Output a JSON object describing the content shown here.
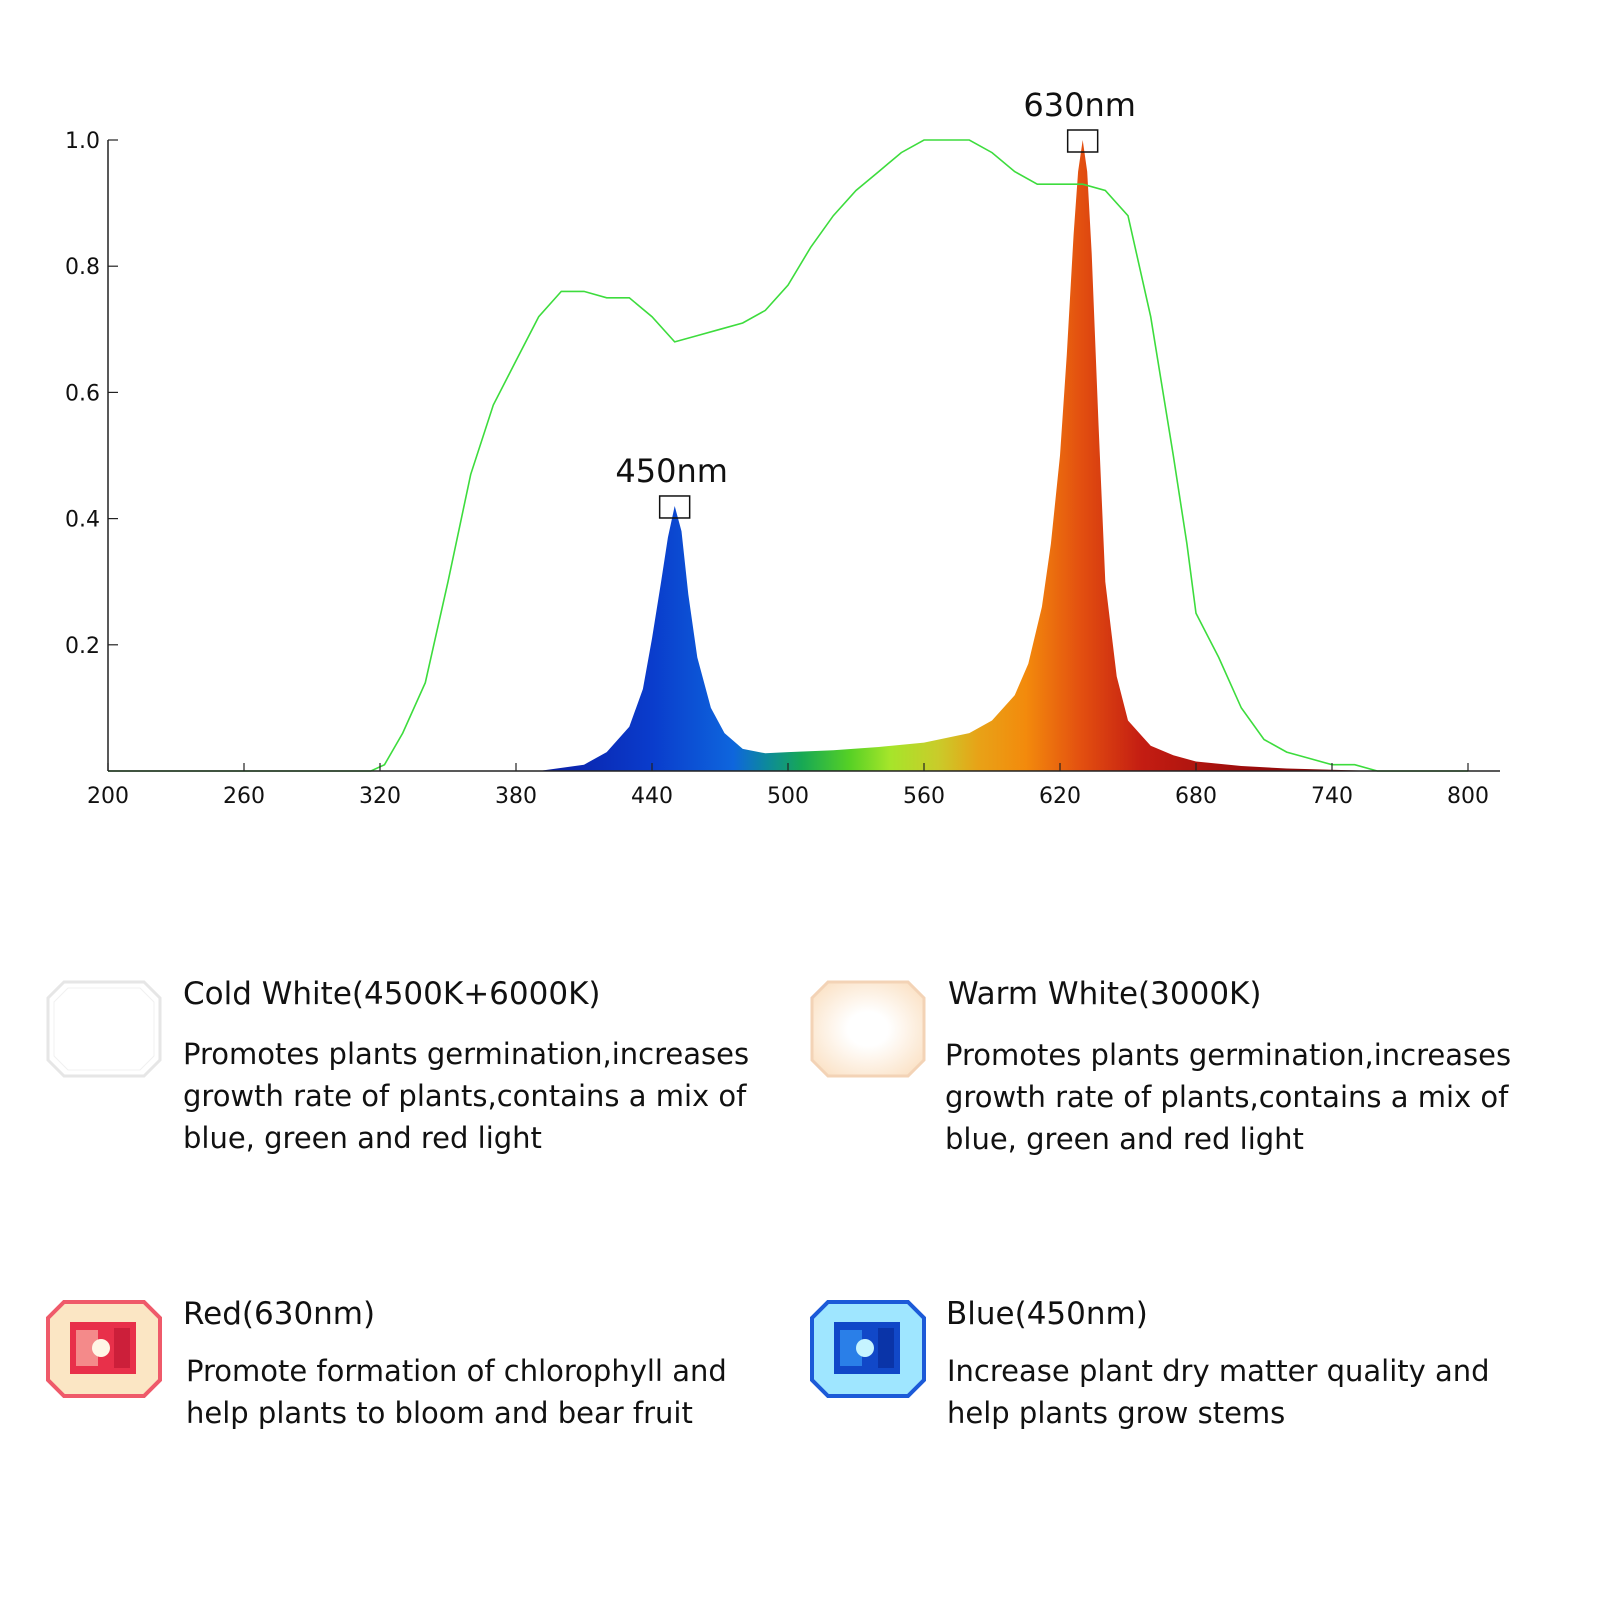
{
  "chart_data": {
    "type": "area",
    "title": "",
    "xlabel": "",
    "ylabel": "",
    "xlim": [
      200,
      800
    ],
    "ylim": [
      0,
      1.0
    ],
    "x_ticks": [
      "200",
      "260",
      "320",
      "380",
      "440",
      "500",
      "560",
      "620",
      "680",
      "740",
      "800"
    ],
    "y_ticks": [
      "0.2",
      "0.4",
      "0.6",
      "0.8",
      "1.0"
    ],
    "grid": false,
    "series": [
      {
        "style": "line",
        "color": "#3ddc3d",
        "x": [
          200,
          316,
          322,
          330,
          340,
          350,
          360,
          370,
          380,
          390,
          400,
          410,
          420,
          430,
          440,
          450,
          460,
          470,
          480,
          490,
          500,
          510,
          520,
          530,
          540,
          550,
          560,
          570,
          580,
          590,
          600,
          610,
          620,
          630,
          640,
          650,
          660,
          670,
          676,
          680,
          690,
          700,
          710,
          720,
          730,
          740,
          750,
          760,
          770,
          780,
          790,
          800
        ],
        "y": [
          0,
          0,
          0.01,
          0.06,
          0.14,
          0.3,
          0.47,
          0.58,
          0.65,
          0.72,
          0.76,
          0.76,
          0.75,
          0.75,
          0.72,
          0.68,
          0.69,
          0.7,
          0.71,
          0.73,
          0.77,
          0.83,
          0.88,
          0.92,
          0.95,
          0.98,
          1.0,
          1.0,
          1.0,
          0.98,
          0.95,
          0.93,
          0.93,
          0.93,
          0.92,
          0.88,
          0.72,
          0.5,
          0.36,
          0.25,
          0.18,
          0.1,
          0.05,
          0.03,
          0.02,
          0.01,
          0.01,
          0,
          0,
          0,
          0,
          0
        ]
      },
      {
        "style": "filled-spectrum",
        "x": [
          200,
          390,
          410,
          420,
          430,
          436,
          440,
          444,
          447,
          450,
          453,
          456,
          460,
          466,
          472,
          480,
          490,
          500,
          520,
          540,
          560,
          580,
          590,
          600,
          606,
          612,
          616,
          620,
          623,
          626,
          628,
          630,
          632,
          634,
          637,
          640,
          645,
          650,
          660,
          670,
          680,
          700,
          720,
          740,
          760,
          800
        ],
        "y": [
          0,
          0,
          0.01,
          0.03,
          0.07,
          0.13,
          0.21,
          0.3,
          0.37,
          0.42,
          0.38,
          0.28,
          0.18,
          0.1,
          0.06,
          0.035,
          0.028,
          0.03,
          0.033,
          0.038,
          0.045,
          0.06,
          0.08,
          0.12,
          0.17,
          0.26,
          0.36,
          0.5,
          0.66,
          0.85,
          0.95,
          1.0,
          0.95,
          0.82,
          0.55,
          0.3,
          0.15,
          0.08,
          0.04,
          0.025,
          0.015,
          0.008,
          0.004,
          0.002,
          0,
          0
        ]
      }
    ],
    "annotations": [
      {
        "x": 450,
        "y": 0.42,
        "text": "450nm"
      },
      {
        "x": 630,
        "y": 1.0,
        "text": "630nm"
      }
    ]
  },
  "colors": {
    "green_line": "#3ddc3d",
    "axis": "#222222"
  },
  "leds": [
    {
      "icon": "cold-white-led-icon",
      "title": "Cold White(4500K+6000K)",
      "description": "Promotes plants germination,increases growth rate of plants,contains a mix of blue, green and red light",
      "frame_color": "#e6e6e6",
      "fill_color": "#ffffff",
      "center_color": "#ffffff"
    },
    {
      "icon": "warm-white-led-icon",
      "title": "Warm White(3000K)",
      "description": "Promotes plants germination,increases growth rate of plants,contains a mix of blue, green and red light",
      "frame_color": "#f3d3b6",
      "fill_color": "#fffaf0",
      "center_color": "#ffffff"
    },
    {
      "icon": "red-led-icon",
      "title": "Red(630nm)",
      "description": "Promote formation of chlorophyll and help plants to bloom and bear fruit",
      "frame_color": "#ef5a6a",
      "fill_color": "#fbe6c4",
      "center_color": "#e8304a"
    },
    {
      "icon": "blue-led-icon",
      "title": "Blue(450nm)",
      "description": "Increase plant dry matter quality and help plants grow stems",
      "frame_color": "#1c5ad8",
      "fill_color": "#9fe6ff",
      "center_color": "#1148c8"
    }
  ]
}
